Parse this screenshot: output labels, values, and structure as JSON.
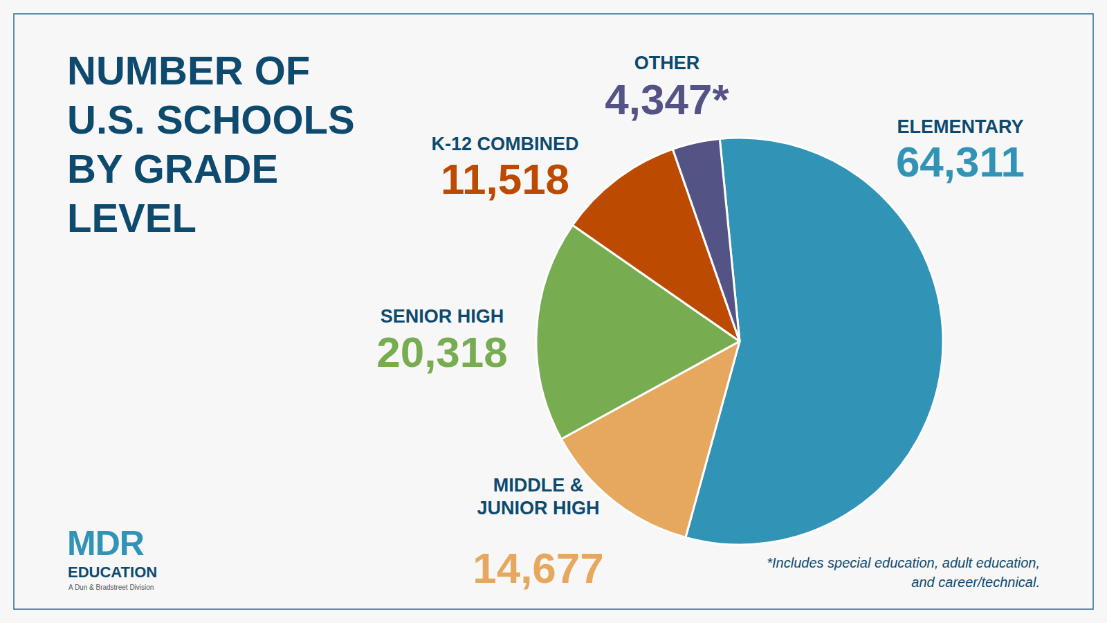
{
  "chart_data": {
    "type": "pie",
    "title": "NUMBER OF U.S. SCHOOLS BY GRADE LEVEL",
    "categories": [
      "ELEMENTARY",
      "MIDDLE & JUNIOR HIGH",
      "SENIOR HIGH",
      "K-12 COMBINED",
      "OTHER"
    ],
    "values": [
      64311,
      14677,
      20318,
      11518,
      4347
    ],
    "value_labels": [
      "64,311",
      "14,677",
      "20,318",
      "11,518",
      "4,347*"
    ],
    "colors": [
      "#3193b5",
      "#e6a85f",
      "#77ac50",
      "#bc4a00",
      "#545386"
    ],
    "data_labels": true,
    "footnote": "*Includes special education, adult education, and career/technical.",
    "logo": {
      "name": "MDR",
      "subtitle": "EDUCATION",
      "tagline": "A Dun & Bradstreet Division"
    }
  }
}
